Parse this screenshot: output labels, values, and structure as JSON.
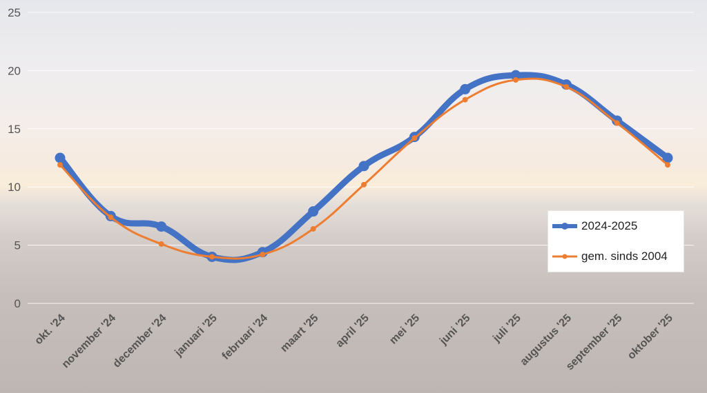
{
  "chart_data": {
    "type": "line",
    "categories": [
      "okt. '24",
      "november '24",
      "december '24",
      "januari '25",
      "februari '24",
      "maart '25",
      "april '25",
      "mei '25",
      "juni '25",
      "juli '25",
      "augustus '25",
      "september '25",
      "oktober '25"
    ],
    "series": [
      {
        "name": "2024-2025",
        "color": "#4472C4",
        "values": [
          12.5,
          7.5,
          6.6,
          4.0,
          4.4,
          7.9,
          11.8,
          14.3,
          18.4,
          19.6,
          18.8,
          15.7,
          12.5
        ]
      },
      {
        "name": "gem. sinds 2004",
        "color": "#ED7D31",
        "values": [
          11.9,
          7.4,
          5.1,
          4.0,
          4.2,
          6.4,
          10.2,
          14.2,
          17.5,
          19.2,
          18.6,
          15.5,
          11.9
        ]
      }
    ],
    "yticks": [
      "25",
      "20",
      "15",
      "10",
      "5",
      "0"
    ],
    "ylim": [
      0,
      25
    ],
    "grid": true,
    "legend_position": "right"
  }
}
